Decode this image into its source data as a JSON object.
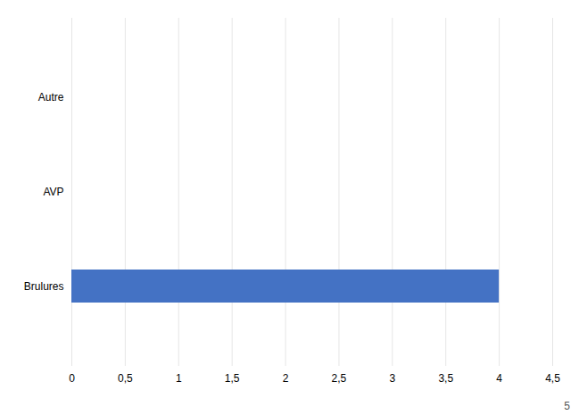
{
  "chart_data": {
    "type": "bar",
    "orientation": "horizontal",
    "categories": [
      "Brulures",
      "AVP",
      "Autre"
    ],
    "values": [
      4,
      0,
      0
    ],
    "color": "#4472C4",
    "xlim": [
      0,
      4.5
    ],
    "xticks": [
      0,
      {
        "value": 0.5,
        "label": "0,5"
      },
      1,
      {
        "value": 1.5,
        "label": "1,5"
      },
      2,
      {
        "value": 2.5,
        "label": "2,5"
      },
      3,
      {
        "value": 3.5,
        "label": "3,5"
      },
      4,
      {
        "value": 4.5,
        "label": "4,5"
      }
    ],
    "grid": true,
    "annotations": [
      "5"
    ]
  }
}
